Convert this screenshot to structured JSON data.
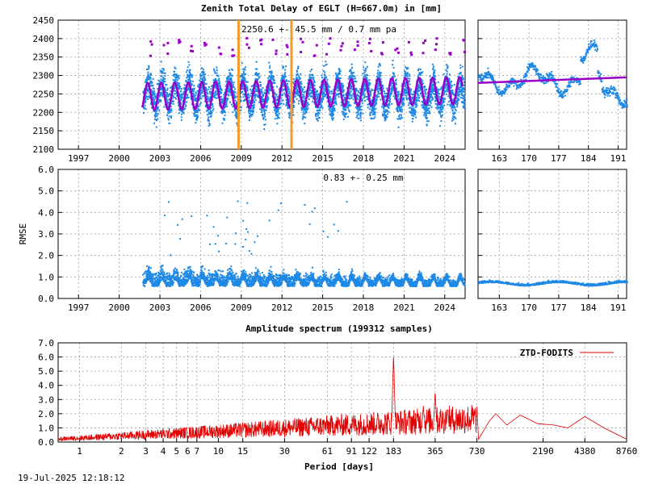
{
  "footer": {
    "timestamp": "19-Jul-2025 12:18:12"
  },
  "colors": {
    "ztd": "#1e88e5",
    "model": "#9a00c8",
    "orange": "#f39c2a",
    "spectrum": "#e00000"
  },
  "chart_data": [
    {
      "id": "ztd",
      "type": "scatter",
      "title": "Zenith Total Delay of EGLT (H=667.0m) in [mm]",
      "annotation": "2250.6 +-  45.5 mm /  0.7 mm pa",
      "ylim": [
        2100,
        2450
      ],
      "y_ticks": [
        "2100",
        "2150",
        "2200",
        "2250",
        "2300",
        "2350",
        "2400",
        "2450"
      ],
      "xlim": [
        1995.5,
        2025.5
      ],
      "x_ticks": [
        "1997",
        "2000",
        "2003",
        "2006",
        "2009",
        "2012",
        "2015",
        "2018",
        "2021",
        "2024"
      ],
      "data_start": 2001.7,
      "mean": 2250.6,
      "seasonal_amplitude": 45.5,
      "trend_mm_per_year": 0.7,
      "vertical_markers": [
        2008.8,
        2012.7
      ],
      "recent": {
        "xlim": [
          158,
          193
        ],
        "x_ticks": [
          "163",
          "170",
          "177",
          "184",
          "191"
        ],
        "ylim": [
          2100,
          2450
        ],
        "model_start": 2280,
        "model_end": 2295
      }
    },
    {
      "id": "rmse",
      "type": "scatter",
      "ylabel": "RMSE",
      "annotation": "0.83 +-  0.25 mm",
      "ylim": [
        0,
        6
      ],
      "y_ticks": [
        "0.0",
        "1.0",
        "2.0",
        "3.0",
        "4.0",
        "5.0",
        "6.0"
      ],
      "xlim": [
        1995.5,
        2025.5
      ],
      "x_ticks": [
        "1997",
        "2000",
        "2003",
        "2006",
        "2009",
        "2012",
        "2015",
        "2018",
        "2021",
        "2024"
      ],
      "mean": 0.83,
      "std": 0.25,
      "recent": {
        "xlim": [
          158,
          193
        ],
        "x_ticks": [
          "163",
          "170",
          "177",
          "184",
          "191"
        ],
        "level": 0.7
      }
    },
    {
      "id": "spectrum",
      "type": "line",
      "title": "Amplitude spectrum (199312 samples)",
      "xlabel": "Period [days]",
      "legend": "ZTD-FODITS",
      "legend_position": "top-right",
      "ylim": [
        0,
        7
      ],
      "y_ticks": [
        "0.0",
        "1.0",
        "2.0",
        "3.0",
        "4.0",
        "5.0",
        "6.0",
        "7.0"
      ],
      "xlim": [
        0.7,
        8760
      ],
      "x_ticks": [
        "1",
        "2",
        "3",
        "4",
        "5",
        "6",
        "7",
        "10",
        "15",
        "30",
        "61",
        "91",
        "122",
        "183",
        "365",
        "730",
        "2190",
        "4380",
        "8760"
      ],
      "peaks": [
        {
          "period": 183,
          "amplitude": 6.2
        },
        {
          "period": 365,
          "amplitude": 3.6
        },
        {
          "period": 300,
          "amplitude": 2.6
        },
        {
          "period": 450,
          "amplitude": 2.4
        },
        {
          "period": 1000,
          "amplitude": 2.0
        },
        {
          "period": 4380,
          "amplitude": 1.8
        }
      ],
      "tail": [
        [
          750,
          0.2
        ],
        [
          900,
          1.5
        ],
        [
          1000,
          2.0
        ],
        [
          1200,
          1.2
        ],
        [
          1500,
          1.9
        ],
        [
          2000,
          1.3
        ],
        [
          2600,
          1.2
        ],
        [
          3300,
          1.0
        ],
        [
          4380,
          1.8
        ],
        [
          6000,
          1.0
        ],
        [
          8760,
          0.2
        ]
      ]
    }
  ]
}
